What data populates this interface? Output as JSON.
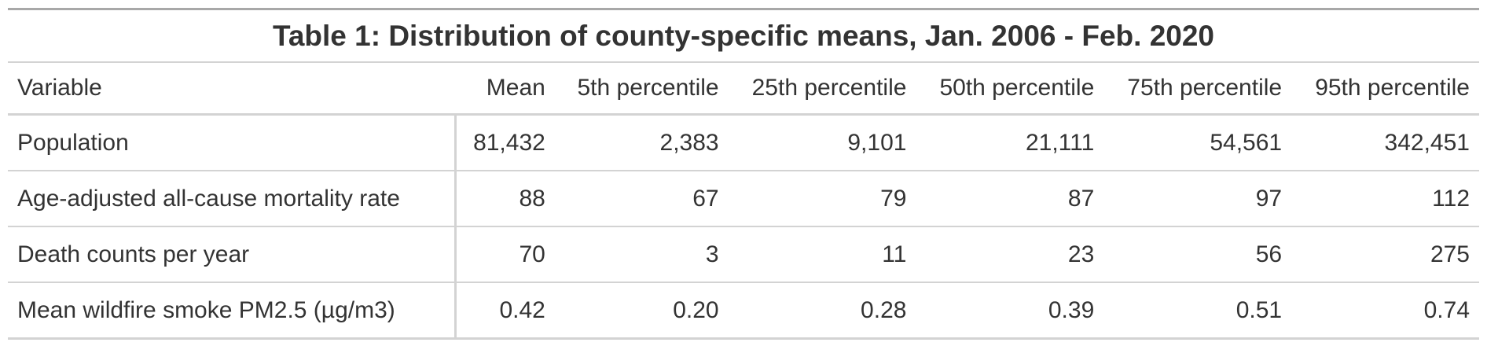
{
  "table": {
    "title": "Table 1: Distribution of county-specific means, Jan. 2006 - Feb. 2020",
    "columns": [
      "Variable",
      "Mean",
      "5th percentile",
      "25th percentile",
      "50th percentile",
      "75th percentile",
      "95th percentile"
    ],
    "rows": [
      {
        "variable": "Population",
        "values": [
          "81,432",
          "2,383",
          "9,101",
          "21,111",
          "54,561",
          "342,451"
        ]
      },
      {
        "variable": "Age-adjusted all-cause mortality rate",
        "values": [
          "88",
          "67",
          "79",
          "87",
          "97",
          "112"
        ]
      },
      {
        "variable": "Death counts per year",
        "values": [
          "70",
          "3",
          "11",
          "23",
          "56",
          "275"
        ]
      },
      {
        "variable": "Mean wildfire smoke PM2.5 (µg/m3)",
        "values": [
          "0.42",
          "0.20",
          "0.28",
          "0.39",
          "0.51",
          "0.74"
        ]
      }
    ]
  }
}
